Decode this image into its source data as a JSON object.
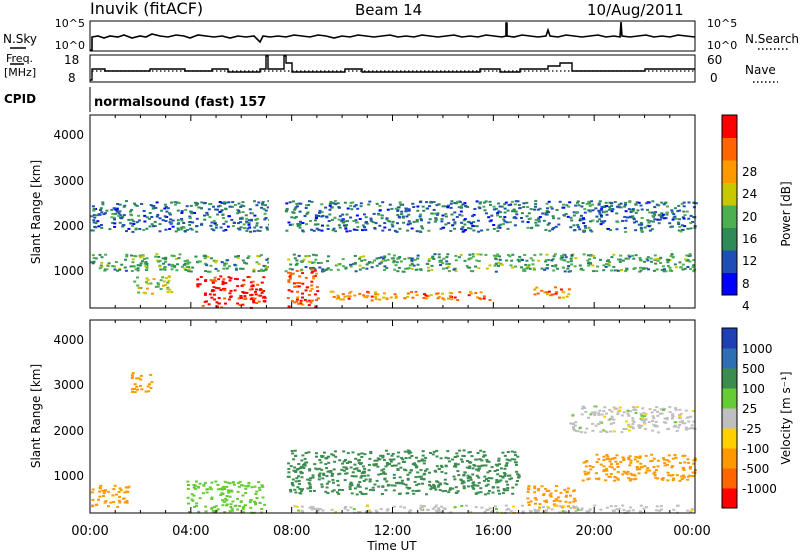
{
  "header": {
    "station": "Inuvik (fitACF)",
    "beam": "Beam 14",
    "date": "10/Aug/2011"
  },
  "nsky_panel": {
    "left_label": "N.Sky",
    "right_label": "N.Search",
    "left_ticks": [
      "10^5",
      "10^0"
    ],
    "right_ticks": [
      "10^5",
      "10^0"
    ]
  },
  "freq_panel": {
    "left_label_line1": "Freq.",
    "left_label_line2": "[MHz]",
    "right_label": "Nave",
    "left_ticks": [
      "18",
      "8"
    ],
    "right_ticks": [
      "60",
      "0"
    ]
  },
  "cpid": {
    "label": "CPID",
    "value": "normalsound (fast) 157"
  },
  "range_axis": {
    "label": "Slant Range [km]",
    "ticks": [
      "4000",
      "3000",
      "2000",
      "1000"
    ]
  },
  "time_axis": {
    "label": "Time UT",
    "ticks": [
      "00:00",
      "04:00",
      "08:00",
      "12:00",
      "16:00",
      "20:00",
      "00:00"
    ]
  },
  "power_colorbar": {
    "label": "Power [dB]",
    "ticks": [
      "28",
      "24",
      "20",
      "16",
      "12",
      "8",
      "4"
    ],
    "colors": [
      "#0000ff",
      "#1f4fb4",
      "#2e8b57",
      "#4caf50",
      "#c8c800",
      "#ff9900",
      "#ff6600",
      "#ff0000"
    ]
  },
  "velocity_colorbar": {
    "label": "Velocity [m s⁻¹]",
    "ticks": [
      "1000",
      "500",
      "100",
      "25",
      "-25",
      "-100",
      "-500",
      "-1000"
    ],
    "colors": [
      "#1f3fb4",
      "#2e6fb4",
      "#3c8c50",
      "#66cc33",
      "#bfbfbf",
      "#ffd000",
      "#ff9900",
      "#ff6600",
      "#ff0000"
    ]
  },
  "chart_data": {
    "type": "heatmap",
    "x_range_hours": [
      0,
      24
    ],
    "y_range_km": [
      180,
      4500
    ],
    "data_gap_hours": [
      7.1,
      7.7
    ],
    "power_regions_db": [
      {
        "t": [
          4.2,
          6.9
        ],
        "r": [
          180,
          900
        ],
        "value": 30
      },
      {
        "t": [
          7.8,
          9.0
        ],
        "r": [
          180,
          1100
        ],
        "value": 28
      },
      {
        "t": [
          1.7,
          3.2
        ],
        "r": [
          500,
          900
        ],
        "value": 16
      },
      {
        "t": [
          9.5,
          16
        ],
        "r": [
          350,
          550
        ],
        "value": 24
      },
      {
        "t": [
          17.5,
          19
        ],
        "r": [
          400,
          650
        ],
        "value": 24
      },
      {
        "t": [
          0,
          24
        ],
        "r": [
          1000,
          1400
        ],
        "value": 12
      },
      {
        "t": [
          0,
          24
        ],
        "r": [
          1900,
          2600
        ],
        "value": 8
      }
    ],
    "velocity_regions_ms": [
      {
        "t": [
          0,
          1.5
        ],
        "r": [
          300,
          800
        ],
        "value": -300
      },
      {
        "t": [
          1.6,
          2.4
        ],
        "r": [
          2900,
          3400
        ],
        "value": -400
      },
      {
        "t": [
          3.8,
          6.9
        ],
        "r": [
          180,
          900
        ],
        "value": 60
      },
      {
        "t": [
          7.8,
          17
        ],
        "r": [
          600,
          1600
        ],
        "value": 200
      },
      {
        "t": [
          17.3,
          19.2
        ],
        "r": [
          300,
          800
        ],
        "value": -400
      },
      {
        "t": [
          19.5,
          24
        ],
        "r": [
          900,
          1500
        ],
        "value": -300
      },
      {
        "t": [
          8,
          24
        ],
        "r": [
          180,
          350
        ],
        "value": 0
      },
      {
        "t": [
          19,
          24
        ],
        "r": [
          2000,
          2600
        ],
        "value": 0
      }
    ]
  }
}
